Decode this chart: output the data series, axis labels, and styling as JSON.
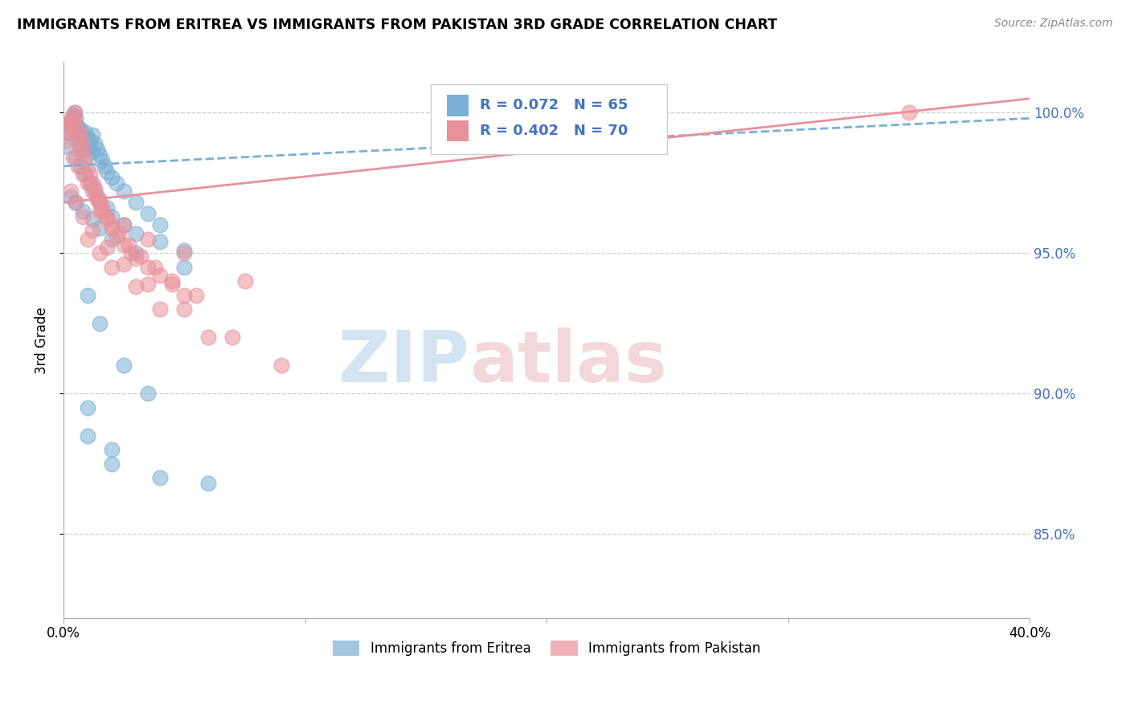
{
  "title": "IMMIGRANTS FROM ERITREA VS IMMIGRANTS FROM PAKISTAN 3RD GRADE CORRELATION CHART",
  "source": "Source: ZipAtlas.com",
  "ylabel": "3rd Grade",
  "x_min": 0.0,
  "x_max": 40.0,
  "y_min": 82.0,
  "y_max": 101.8,
  "R_eritrea": 0.072,
  "N_eritrea": 65,
  "R_pakistan": 0.402,
  "N_pakistan": 70,
  "color_eritrea": "#7bafd4",
  "color_pakistan": "#e8919a",
  "eritrea_x": [
    0.1,
    0.15,
    0.2,
    0.25,
    0.3,
    0.35,
    0.4,
    0.45,
    0.5,
    0.55,
    0.6,
    0.65,
    0.7,
    0.75,
    0.8,
    0.85,
    0.9,
    0.95,
    1.0,
    1.05,
    1.1,
    1.15,
    1.2,
    1.3,
    1.4,
    1.5,
    1.6,
    1.7,
    1.8,
    2.0,
    2.2,
    2.5,
    3.0,
    3.5,
    4.0,
    0.5,
    0.7,
    0.9,
    1.1,
    1.3,
    1.5,
    1.8,
    2.0,
    2.5,
    3.0,
    4.0,
    5.0,
    0.3,
    0.5,
    0.8,
    1.2,
    1.5,
    2.0,
    3.0,
    5.0,
    1.0,
    1.5,
    2.5,
    3.5,
    1.0,
    2.0,
    4.0,
    6.0,
    1.0,
    2.0
  ],
  "eritrea_y": [
    98.8,
    99.3,
    99.5,
    99.6,
    99.7,
    99.8,
    99.9,
    100.0,
    99.8,
    99.5,
    99.2,
    98.9,
    99.4,
    99.1,
    98.7,
    99.0,
    99.3,
    98.5,
    99.1,
    98.8,
    99.0,
    98.6,
    99.2,
    98.9,
    98.7,
    98.5,
    98.3,
    98.1,
    97.9,
    97.7,
    97.5,
    97.2,
    96.8,
    96.4,
    96.0,
    98.4,
    98.1,
    97.8,
    97.5,
    97.2,
    96.9,
    96.6,
    96.3,
    96.0,
    95.7,
    95.4,
    95.1,
    97.0,
    96.8,
    96.5,
    96.2,
    95.9,
    95.5,
    95.0,
    94.5,
    93.5,
    92.5,
    91.0,
    90.0,
    88.5,
    87.5,
    87.0,
    86.8,
    89.5,
    88.0
  ],
  "pakistan_x": [
    0.1,
    0.15,
    0.2,
    0.25,
    0.3,
    0.35,
    0.4,
    0.45,
    0.5,
    0.55,
    0.6,
    0.65,
    0.7,
    0.75,
    0.8,
    0.9,
    1.0,
    1.1,
    1.2,
    1.3,
    1.4,
    1.5,
    1.6,
    1.8,
    2.0,
    2.2,
    2.5,
    2.8,
    3.0,
    3.5,
    4.0,
    4.5,
    5.0,
    0.4,
    0.6,
    0.8,
    1.0,
    1.2,
    1.4,
    1.6,
    1.8,
    2.0,
    2.3,
    2.7,
    3.2,
    3.8,
    4.5,
    5.5,
    0.3,
    0.5,
    0.8,
    1.2,
    1.8,
    2.5,
    3.5,
    5.0,
    7.0,
    1.0,
    1.5,
    2.0,
    3.0,
    4.0,
    6.0,
    9.0,
    1.5,
    2.5,
    3.5,
    5.0,
    7.5,
    35.0
  ],
  "pakistan_y": [
    99.0,
    99.3,
    99.5,
    99.6,
    99.7,
    99.8,
    99.9,
    100.0,
    99.6,
    99.3,
    99.0,
    98.7,
    99.2,
    98.9,
    98.6,
    98.3,
    98.0,
    97.8,
    97.5,
    97.3,
    97.0,
    96.8,
    96.5,
    96.2,
    95.9,
    95.6,
    95.3,
    95.0,
    94.8,
    94.5,
    94.2,
    93.9,
    93.5,
    98.4,
    98.1,
    97.8,
    97.5,
    97.2,
    96.9,
    96.6,
    96.3,
    96.0,
    95.7,
    95.3,
    94.9,
    94.5,
    94.0,
    93.5,
    97.2,
    96.8,
    96.3,
    95.8,
    95.2,
    94.6,
    93.9,
    93.0,
    92.0,
    95.5,
    95.0,
    94.5,
    93.8,
    93.0,
    92.0,
    91.0,
    96.5,
    96.0,
    95.5,
    95.0,
    94.0,
    100.0
  ],
  "trend_eritrea_x0": 0.0,
  "trend_eritrea_y0": 98.1,
  "trend_eritrea_x1": 40.0,
  "trend_eritrea_y1": 99.8,
  "trend_pakistan_x0": 0.0,
  "trend_pakistan_y0": 96.8,
  "trend_pakistan_x1": 40.0,
  "trend_pakistan_y1": 100.5
}
